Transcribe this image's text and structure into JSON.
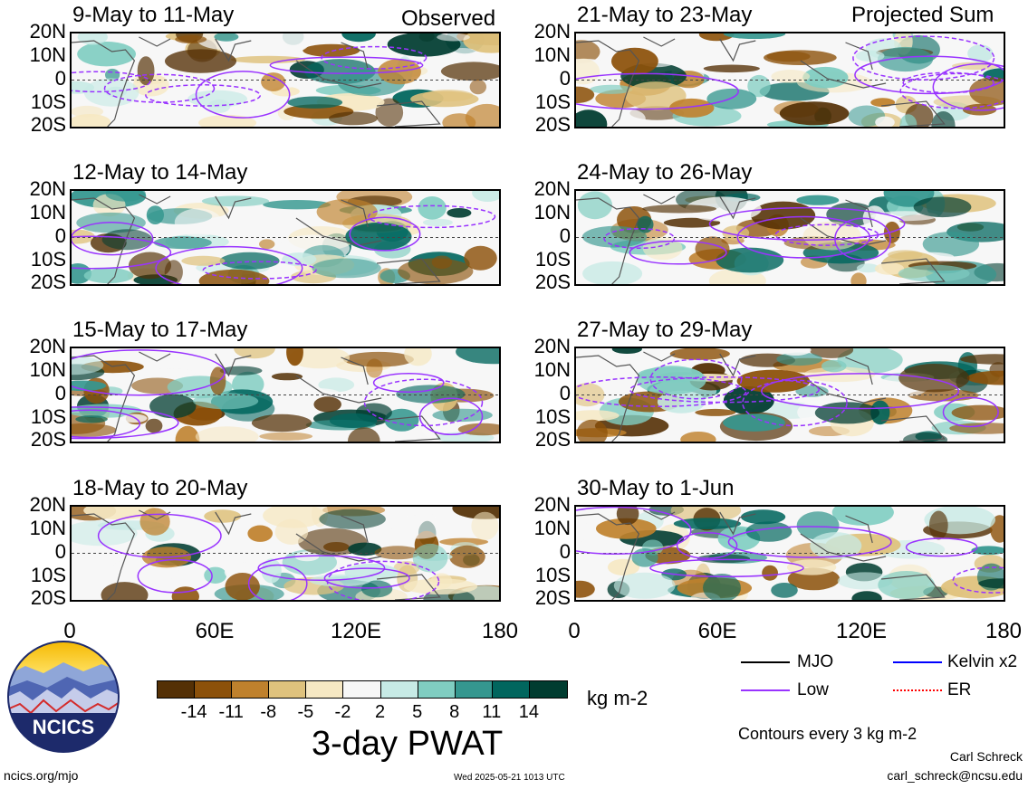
{
  "header": {
    "observed_label": "Observed",
    "projected_label": "Projected Sum"
  },
  "panels_left": [
    {
      "title": "9-May to 11-May"
    },
    {
      "title": "12-May to 14-May"
    },
    {
      "title": "15-May to 17-May"
    },
    {
      "title": "18-May to 20-May"
    }
  ],
  "panels_right": [
    {
      "title": "21-May to 23-May"
    },
    {
      "title": "24-May to 26-May"
    },
    {
      "title": "27-May to 29-May"
    },
    {
      "title": "30-May to 1-Jun"
    }
  ],
  "lat_labels": [
    "20N",
    "10N",
    "0",
    "10S",
    "20S"
  ],
  "lon_labels": [
    "0",
    "60E",
    "120E",
    "180"
  ],
  "colorbar": {
    "ticks": [
      "-14",
      "-11",
      "-8",
      "-5",
      "-2",
      "2",
      "5",
      "8",
      "11",
      "14"
    ],
    "units": "kg m-2",
    "colors": [
      "#543005",
      "#8c510a",
      "#bf812d",
      "#dfc27d",
      "#f6e8c3",
      "#f7f7f7",
      "#c7eae5",
      "#80cdc1",
      "#35978f",
      "#01665e",
      "#003c30"
    ]
  },
  "main_title": "3-day PWAT",
  "legend": {
    "mjo": {
      "label": "MJO",
      "color": "#000000"
    },
    "kelvin": {
      "label": "Kelvin x2",
      "color": "#0000ff"
    },
    "low": {
      "label": "Low",
      "color": "#9933ff"
    },
    "er": {
      "label": "ER",
      "color": "#ff0000"
    },
    "contours_note": "Contours every 3 kg m-2"
  },
  "credits": {
    "author": "Carl Schreck",
    "email": "carl_schreck@ncsu.edu",
    "site": "ncics.org/mjo",
    "timestamp": "Wed 2025-05-21 1013 UTC"
  },
  "logo": {
    "text": "NCICS"
  }
}
